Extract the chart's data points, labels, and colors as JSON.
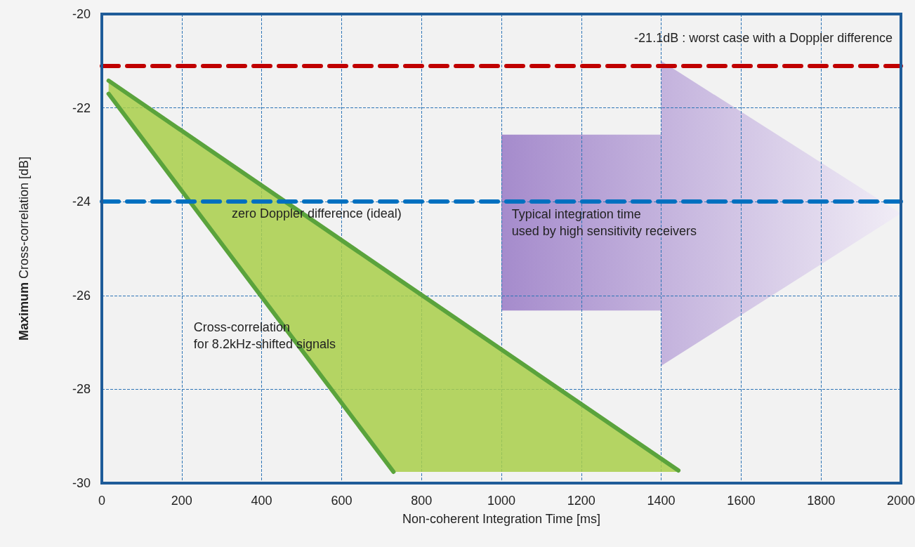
{
  "chart_data": {
    "type": "line",
    "xlabel": "Non-coherent Integration Time [ms]",
    "ylabel": "Maximum Cross-correlation [dB]",
    "xlim": [
      0,
      2000
    ],
    "xticks": [
      0,
      200,
      400,
      600,
      800,
      1000,
      1200,
      1400,
      1600,
      1800,
      2000
    ],
    "ylim": [
      -30,
      -20
    ],
    "yticks": [
      -30,
      -28,
      -26,
      -24,
      -22,
      -20
    ],
    "grid": true,
    "marker": "none",
    "line_style": "solid",
    "series": [
      {
        "color": "#5aa33c",
        "x": [
          17,
          730,
          1443
        ],
        "values": [
          -21.42,
          -25.58,
          -29.73
        ],
        "lower": [
          -21.7,
          -29.76,
          -29.76
        ],
        "upper": [
          -21.42,
          -25.58,
          -29.73
        ]
      },
      {
        "color": "#5aa33c",
        "x": [
          17,
          730
        ],
        "values": [
          -21.7,
          -29.76
        ]
      }
    ],
    "ref_lines": [
      {
        "axis": "y",
        "value": -21.1,
        "color": "#c00000",
        "line_style": "dashed",
        "label": "-21.1dB : worst case with a Doppler difference"
      },
      {
        "axis": "y",
        "value": -24,
        "color": "#0070c0",
        "line_style": "dashed",
        "label": "zero Doppler difference (ideal)"
      }
    ],
    "annotations": [
      "Typical integration time\nused by high sensitivity receivers",
      "Cross-correlation\nfor 8.2kHz-shifted signals"
    ]
  }
}
